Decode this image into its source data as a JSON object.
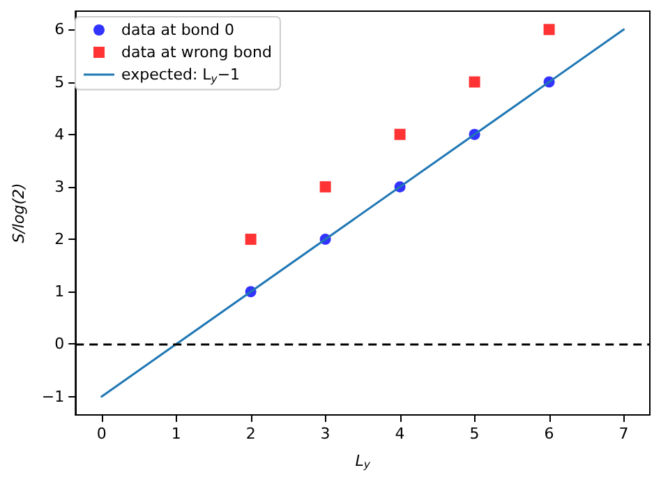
{
  "chart_data": {
    "type": "scatter",
    "xlabel": "L$_{y}$",
    "ylabel": "S/log(2)",
    "xlim": [
      -0.35,
      7.35
    ],
    "ylim": [
      -1.35,
      6.35
    ],
    "xticks": [
      0,
      1,
      2,
      3,
      4,
      5,
      6,
      7
    ],
    "yticks": [
      -1,
      0,
      1,
      2,
      3,
      4,
      5,
      6
    ],
    "grid": false,
    "legend": "top left",
    "series": [
      {
        "name": "data at bond 0",
        "marker": "circle",
        "color": "#0000ff",
        "x": [
          2,
          3,
          4,
          5,
          6
        ],
        "values": [
          1,
          2,
          3,
          4,
          5
        ]
      },
      {
        "name": "data at wrong bond",
        "marker": "square",
        "color": "#ff0000",
        "x": [
          2,
          3,
          4,
          5,
          6
        ],
        "values": [
          2,
          3,
          4,
          5,
          6
        ]
      },
      {
        "name": "expected: L$_{y}$−1",
        "type": "line",
        "marker": "none",
        "line_style": "solid",
        "color": "#1f77b4",
        "x": [
          0,
          7
        ],
        "values": [
          -1,
          6
        ]
      }
    ],
    "ref_lines": [
      {
        "axis": "y",
        "value": 0,
        "color": "#000000",
        "line_style": "dashed"
      }
    ]
  }
}
